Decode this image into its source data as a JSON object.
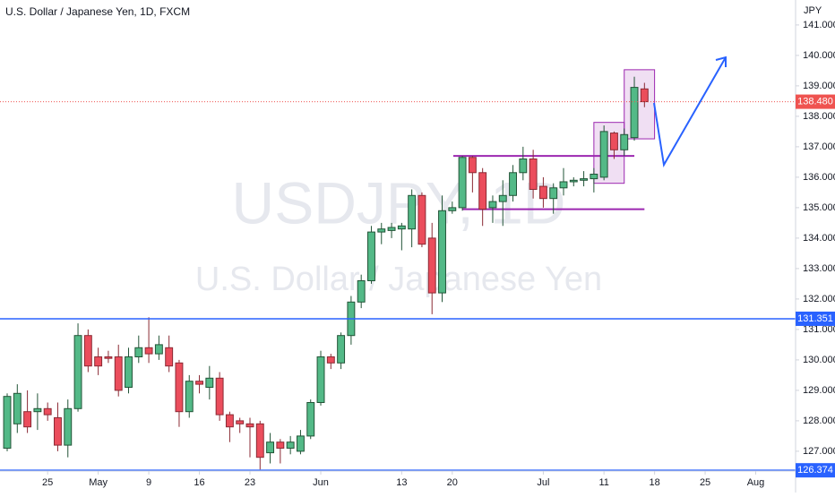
{
  "chart_data": {
    "type": "candlestick",
    "title": "U.S. Dollar / Japanese Yen, 1D, FXCM",
    "watermark": "USDJPY, 1D",
    "watermark_subtitle": "U.S. Dollar / Japanese Yen",
    "y_axis_label": "JPY",
    "open": [
      127.1,
      127.9,
      128.3,
      128.3,
      128.4,
      128.1,
      127.2,
      128.4,
      130.8,
      130.1,
      130.1,
      130.1,
      129.1,
      130.1,
      130.4,
      130.2,
      130.4,
      129.9,
      128.3,
      129.3,
      129.1,
      129.4,
      128.2,
      128.0,
      127.9,
      127.9,
      126.95,
      127.3,
      127.1,
      127.0,
      127.5,
      128.6,
      130.1,
      129.9,
      130.8,
      131.9,
      132.6,
      134.2,
      134.25,
      134.3,
      134.3,
      135.4,
      134.0,
      132.2,
      134.9,
      135.0,
      136.65,
      136.15,
      135.0,
      135.2,
      135.4,
      136.15,
      136.6,
      135.7,
      135.3,
      135.65,
      135.85,
      135.9,
      135.95,
      136.0,
      137.45,
      136.9,
      137.3,
      138.9
    ],
    "high": [
      128.9,
      129.2,
      129.0,
      128.9,
      128.6,
      128.6,
      128.7,
      131.2,
      131.0,
      130.4,
      130.3,
      130.5,
      130.4,
      130.8,
      131.4,
      130.8,
      130.8,
      130.0,
      129.5,
      129.5,
      129.8,
      129.6,
      128.3,
      128.1,
      128.1,
      128.0,
      127.6,
      127.4,
      127.5,
      127.7,
      128.7,
      130.3,
      130.2,
      130.9,
      132.1,
      132.8,
      134.4,
      134.5,
      134.5,
      134.5,
      135.6,
      135.5,
      134.5,
      135.4,
      135.2,
      136.7,
      136.7,
      136.3,
      135.4,
      135.9,
      136.4,
      137.0,
      136.9,
      136.0,
      135.8,
      136.3,
      136.0,
      136.2,
      136.3,
      137.7,
      137.5,
      137.6,
      139.3,
      139.1
    ],
    "low": [
      127.0,
      127.6,
      127.6,
      127.7,
      128.0,
      127.0,
      126.8,
      128.3,
      129.6,
      129.5,
      129.9,
      128.8,
      128.9,
      129.9,
      129.9,
      130.0,
      129.6,
      127.8,
      128.1,
      128.9,
      128.7,
      128.0,
      127.3,
      127.6,
      126.8,
      126.4,
      126.6,
      126.6,
      126.9,
      126.9,
      127.4,
      128.5,
      129.7,
      129.7,
      130.5,
      131.7,
      132.5,
      133.8,
      134.0,
      133.6,
      133.7,
      133.7,
      131.5,
      131.9,
      134.8,
      134.9,
      135.5,
      134.4,
      134.5,
      134.4,
      135.2,
      135.9,
      135.3,
      135.0,
      134.8,
      135.4,
      135.7,
      135.7,
      135.5,
      135.9,
      136.6,
      136.7,
      137.2,
      138.3
    ],
    "close": [
      128.8,
      128.9,
      127.8,
      128.4,
      128.2,
      127.2,
      128.4,
      130.8,
      129.8,
      129.8,
      130.05,
      129.0,
      130.1,
      130.4,
      130.2,
      130.5,
      129.8,
      128.3,
      129.3,
      129.2,
      129.4,
      128.2,
      127.8,
      127.9,
      127.8,
      126.8,
      127.3,
      127.1,
      127.3,
      127.5,
      128.6,
      130.1,
      129.9,
      130.8,
      131.9,
      132.6,
      134.2,
      134.3,
      134.35,
      134.4,
      135.4,
      133.8,
      132.2,
      134.9,
      135.0,
      136.65,
      136.15,
      134.95,
      135.2,
      135.4,
      136.15,
      136.6,
      135.6,
      135.3,
      135.65,
      135.85,
      135.9,
      135.95,
      136.1,
      137.5,
      136.9,
      137.4,
      138.95,
      138.48
    ],
    "up_color": "#53b987",
    "down_color": "#eb4d5c",
    "xlim": [
      -0.71,
      77.94
    ],
    "xticks": [
      {
        "value": 4,
        "label": "25"
      },
      {
        "value": 9,
        "label": "May"
      },
      {
        "value": 14,
        "label": "9"
      },
      {
        "value": 19,
        "label": "16"
      },
      {
        "value": 24,
        "label": "23"
      },
      {
        "value": 31,
        "label": "Jun"
      },
      {
        "value": 39,
        "label": "13"
      },
      {
        "value": 44,
        "label": "20"
      },
      {
        "value": 53,
        "label": "Jul"
      },
      {
        "value": 59,
        "label": "11"
      },
      {
        "value": 64,
        "label": "18"
      },
      {
        "value": 69,
        "label": "25"
      },
      {
        "value": 74,
        "label": "Aug"
      }
    ],
    "ylim": [
      126.35,
      141.82
    ],
    "yticks": [
      {
        "value": 127,
        "label": "127.000"
      },
      {
        "value": 128,
        "label": "128.000"
      },
      {
        "value": 129,
        "label": "129.000"
      },
      {
        "value": 130,
        "label": "130.000"
      },
      {
        "value": 131,
        "label": "131.000"
      },
      {
        "value": 132,
        "label": "132.000"
      },
      {
        "value": 133,
        "label": "133.000"
      },
      {
        "value": 134,
        "label": "134.000"
      },
      {
        "value": 135,
        "label": "135.000"
      },
      {
        "value": 136,
        "label": "136.000"
      },
      {
        "value": 137,
        "label": "137.000"
      },
      {
        "value": 138,
        "label": "138.000"
      },
      {
        "value": 139,
        "label": "139.000"
      },
      {
        "value": 140,
        "label": "140.000"
      },
      {
        "value": 141,
        "label": "141.000"
      }
    ],
    "grid": false,
    "levels": [
      {
        "value": 131.351,
        "label": "131.351",
        "color": "#2962ff"
      },
      {
        "value": 126.374,
        "label": "126.374",
        "color": "#2962ff"
      }
    ],
    "last_price": {
      "value": 138.48,
      "label": "138.480",
      "color": "#ef5350"
    },
    "segments": [
      {
        "value": 136.7,
        "x": [
          44.1,
          62
        ],
        "color": "#9c27b0"
      },
      {
        "value": 134.95,
        "x": [
          45,
          63
        ],
        "color": "#9c27b0"
      }
    ],
    "zones": [
      {
        "x": [
          58,
          61
        ],
        "y": [
          135.8,
          137.8
        ],
        "color": "#9c27b0"
      },
      {
        "x": [
          61,
          64
        ],
        "y": [
          137.26,
          139.53
        ],
        "color": "#9c27b0"
      }
    ]
  }
}
